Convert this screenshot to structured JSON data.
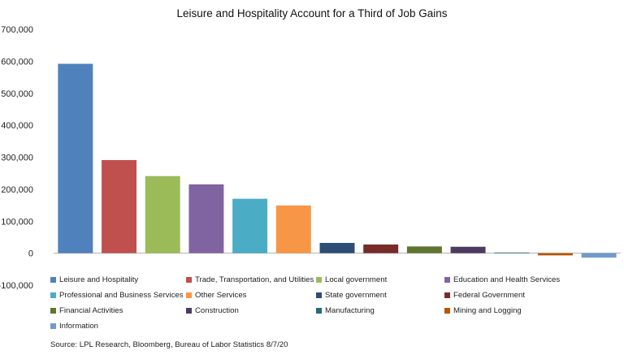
{
  "chart_data": {
    "type": "bar",
    "title": "Leisure and Hospitality Account for a Third of Job Gains",
    "xlabel": "",
    "ylabel": "",
    "ylim": [
      -100000,
      700000
    ],
    "yticks": [
      {
        "value": 700000,
        "label": "700,000"
      },
      {
        "value": 600000,
        "label": "600,000"
      },
      {
        "value": 500000,
        "label": "500,000"
      },
      {
        "value": 400000,
        "label": "400,000"
      },
      {
        "value": 300000,
        "label": "300,000"
      },
      {
        "value": 200000,
        "label": "200,000"
      },
      {
        "value": 100000,
        "label": "100,000"
      },
      {
        "value": 0,
        "label": "0"
      },
      {
        "value": -100000,
        "label": "-100,000"
      }
    ],
    "grid": false,
    "legend_position": "bottom",
    "series": [
      {
        "name": "Leisure and Hospitality",
        "value": 592000,
        "color": "#4F81BD"
      },
      {
        "name": "Trade, Transportation, and Utilities",
        "value": 291000,
        "color": "#C0504D"
      },
      {
        "name": "Local government",
        "value": 241000,
        "color": "#9BBB59"
      },
      {
        "name": "Education and Health Services",
        "value": 215000,
        "color": "#8064A2"
      },
      {
        "name": "Professional and Business Services",
        "value": 170000,
        "color": "#4BACC6"
      },
      {
        "name": "Other Services",
        "value": 149000,
        "color": "#F79646"
      },
      {
        "name": "State government",
        "value": 32000,
        "color": "#2C4D75"
      },
      {
        "name": "Federal Government",
        "value": 27000,
        "color": "#772C2A"
      },
      {
        "name": "Financial Activities",
        "value": 21000,
        "color": "#5F7530"
      },
      {
        "name": "Construction",
        "value": 20000,
        "color": "#4D3B62"
      },
      {
        "name": "Manufacturing",
        "value": 2000,
        "color": "#276A7C"
      },
      {
        "name": "Mining and Logging",
        "value": -7000,
        "color": "#B65708"
      },
      {
        "name": "Information",
        "value": -14000,
        "color": "#729ACA"
      }
    ],
    "source": "Source: LPL Research, Bloomberg, Bureau of Labor Statistics 8/7/20"
  }
}
